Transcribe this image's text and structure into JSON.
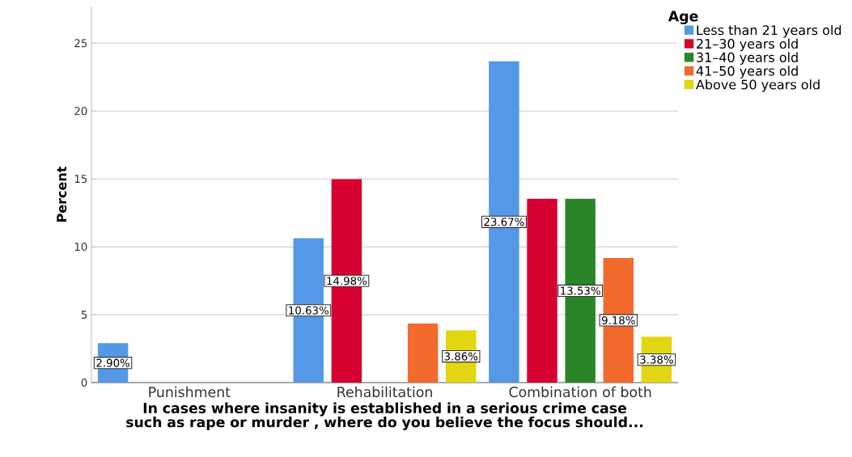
{
  "chart_data": {
    "type": "bar",
    "xlabel": "In cases where insanity is established in a serious crime case such as rape or murder , where do you believe the focus should...",
    "ylabel": "Percent",
    "legend_title": "Age",
    "categories": [
      "Punishment",
      "Rehabilitation",
      "Combination of both"
    ],
    "series": [
      {
        "name": "Less than 21 years old",
        "color": "#5599e6",
        "values": [
          2.9,
          10.63,
          23.67
        ],
        "value_labels": [
          "2.90%",
          "10.63%",
          "23.67%"
        ]
      },
      {
        "name": "21–30 years old",
        "color": "#d70132",
        "values": [
          0,
          14.98,
          13.53
        ],
        "value_labels": [
          null,
          "14.98%",
          null
        ]
      },
      {
        "name": "31–40 years old",
        "color": "#2a8529",
        "values": [
          0,
          0,
          13.53
        ],
        "value_labels": [
          null,
          null,
          "13.53%"
        ]
      },
      {
        "name": "41–50 years old",
        "color": "#f26a2d",
        "values": [
          0,
          4.35,
          9.18
        ],
        "value_labels": [
          null,
          null,
          "9.18%"
        ]
      },
      {
        "name": "Above 50 years old",
        "color": "#e2d511",
        "values": [
          0,
          3.86,
          3.38
        ],
        "value_labels": [
          null,
          "3.86%",
          "3.38%"
        ]
      }
    ],
    "ylim": [
      0,
      27.7
    ],
    "yticks": [
      0,
      5,
      10,
      15,
      20,
      25
    ],
    "grid": "y",
    "legend": "top right"
  }
}
